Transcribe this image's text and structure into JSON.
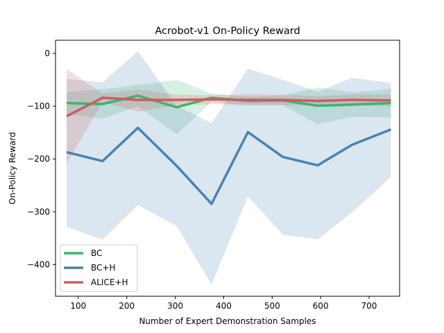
{
  "chart_data": {
    "type": "line",
    "title": "Acrobot-v1 On-Policy Reward",
    "xlabel": "Number of Expert Demonstration Samples",
    "ylabel": "On-Policy Reward",
    "xlim": [
      53,
      763
    ],
    "ylim": [
      -460,
      25
    ],
    "xticks": [
      100,
      200,
      300,
      400,
      500,
      600,
      700
    ],
    "yticks": [
      0,
      -100,
      -200,
      -300,
      -400
    ],
    "grid": false,
    "legend_position": "lower-left",
    "x": [
      76,
      150,
      223,
      303,
      375,
      450,
      522,
      594,
      665,
      745
    ],
    "series": [
      {
        "name": "BC",
        "color": "#3cb371",
        "values": [
          -94,
          -96,
          -80,
          -102,
          -84,
          -90,
          -89,
          -99,
          -97,
          -94
        ],
        "upper": [
          -73,
          -68,
          -60,
          -50,
          -76,
          -82,
          -80,
          -64,
          -74,
          -67
        ],
        "lower": [
          -115,
          -124,
          -100,
          -153,
          -92,
          -98,
          -98,
          -134,
          -120,
          -121
        ]
      },
      {
        "name": "BC+H",
        "color": "#4682b4",
        "values": [
          -187,
          -204,
          -141,
          -213,
          -285,
          -149,
          -196,
          -212,
          -173,
          -144
        ],
        "upper": [
          -48,
          -55,
          4,
          -99,
          -132,
          -29,
          -50,
          -73,
          -46,
          -56
        ],
        "lower": [
          -328,
          -353,
          -287,
          -327,
          -438,
          -271,
          -343,
          -352,
          -301,
          -234
        ]
      },
      {
        "name": "ALICE+H",
        "color": "#cd5c5c",
        "values": [
          -119,
          -84,
          -88,
          -88,
          -87,
          -88,
          -88,
          -90,
          -88,
          -89
        ],
        "upper": [
          -29,
          -76,
          -68,
          -78,
          -79,
          -78,
          -78,
          -81,
          -78,
          -78
        ],
        "lower": [
          -209,
          -92,
          -110,
          -98,
          -96,
          -98,
          -98,
          -99,
          -98,
          -100
        ]
      }
    ]
  }
}
